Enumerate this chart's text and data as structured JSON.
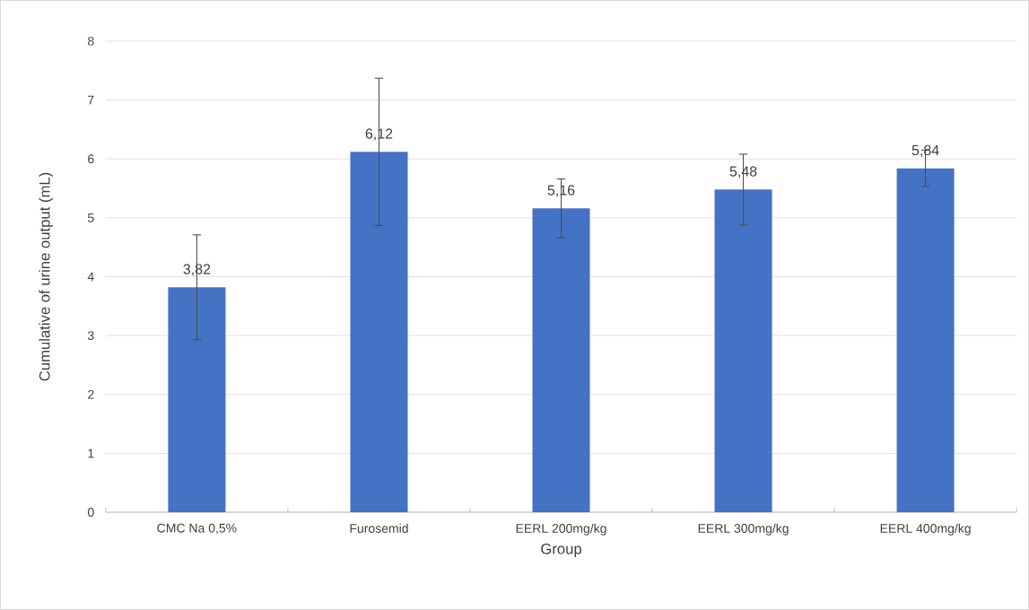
{
  "chart_data": {
    "type": "bar",
    "xlabel": "Group",
    "ylabel": "Cumulative of urine output (mL)",
    "categories": [
      "CMC Na 0,5%",
      "Furosemid",
      "EERL 200mg/kg",
      "EERL 300mg/kg",
      "EERL 400mg/kg"
    ],
    "values": [
      3.82,
      6.12,
      5.16,
      5.48,
      5.84
    ],
    "errors": [
      0.89,
      1.25,
      0.5,
      0.6,
      0.31
    ],
    "value_labels": [
      "3,82",
      "6,12",
      "5,16",
      "5,48",
      "5,84"
    ],
    "color": "#4472c4",
    "ylim": [
      0,
      8
    ],
    "yticks": [
      0,
      1,
      2,
      3,
      4,
      5,
      6,
      7,
      8
    ],
    "grid": "y"
  }
}
